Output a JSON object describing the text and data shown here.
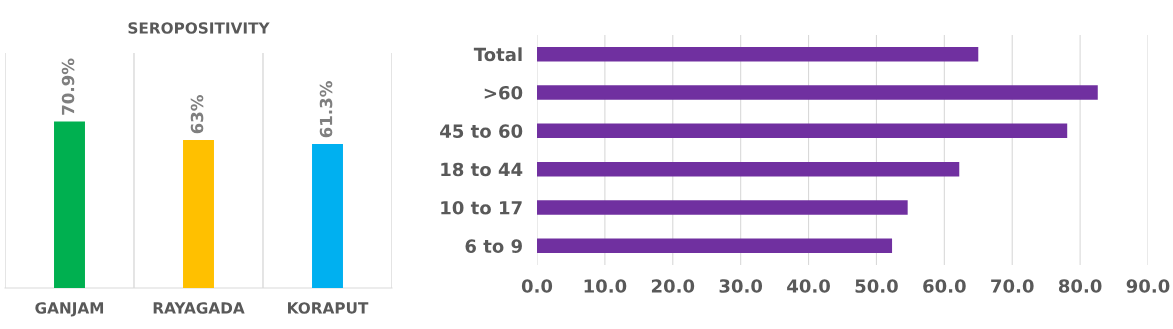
{
  "chart_data": [
    {
      "type": "bar",
      "title": "SEROPOSITIVITY",
      "categories": [
        "GANJAM",
        "RAYAGADA",
        "KORAPUT"
      ],
      "values": [
        70.9,
        63,
        61.3
      ],
      "colors": [
        "#00b050",
        "#ffc000",
        "#00b0f0"
      ],
      "value_labels": [
        "70.9%",
        "63%",
        "61.3%"
      ],
      "ylim": [
        0,
        100
      ],
      "tick_labels": "x",
      "grid": "x"
    },
    {
      "type": "bar",
      "orientation": "horizontal",
      "categories": [
        "Total",
        ">60",
        "45 to 60",
        "18 to 44",
        "10 to 17",
        "6 to 9"
      ],
      "values": [
        65.0,
        82.6,
        78.1,
        62.2,
        54.6,
        52.3
      ],
      "color": "#7030a0",
      "xlim": [
        0,
        90
      ],
      "xticks": [
        {
          "value": 0,
          "label": "0.0"
        },
        {
          "value": 10,
          "label": "10.0"
        },
        {
          "value": 20,
          "label": "20.0"
        },
        {
          "value": 30,
          "label": "30.0"
        },
        {
          "value": 40,
          "label": "40.0"
        },
        {
          "value": 50,
          "label": "50.0"
        },
        {
          "value": 60,
          "label": "60.0"
        },
        {
          "value": 70,
          "label": "70.0"
        },
        {
          "value": 80,
          "label": "80.0"
        },
        {
          "value": 90,
          "label": "90.0"
        }
      ],
      "grid": "x"
    }
  ]
}
